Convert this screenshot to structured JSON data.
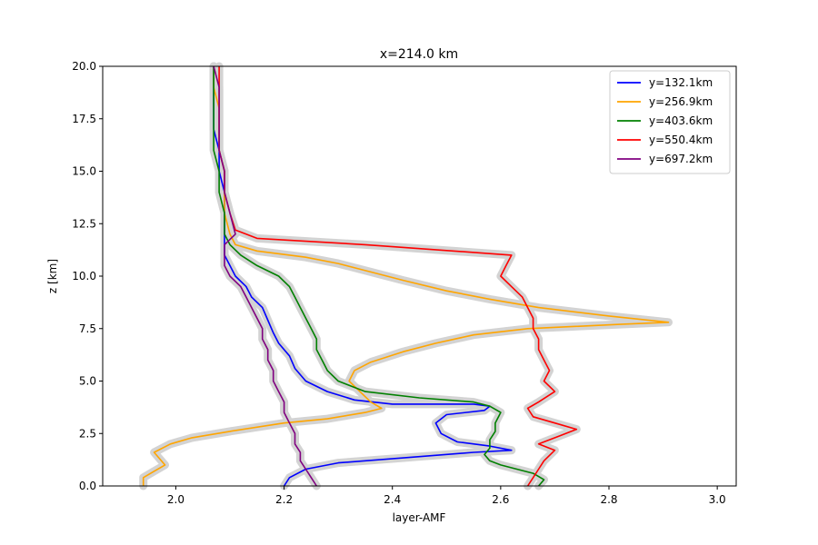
{
  "chart_data": {
    "type": "line",
    "title": "x=214.0 km",
    "xlabel": "layer-AMF",
    "ylabel": "z [km]",
    "xlim": [
      1.865,
      3.035
    ],
    "ylim": [
      0,
      20
    ],
    "xticks": [
      2.0,
      2.2,
      2.4,
      2.6,
      2.8,
      3.0
    ],
    "xtick_labels": [
      "2.0",
      "2.2",
      "2.4",
      "2.6",
      "2.8",
      "3.0"
    ],
    "yticks": [
      0,
      2.5,
      5,
      7.5,
      10,
      12.5,
      15,
      17.5,
      20
    ],
    "ytick_labels": [
      "0.0",
      "2.5",
      "5.0",
      "7.5",
      "10.0",
      "12.5",
      "15.0",
      "17.5",
      "20.0"
    ],
    "grid": false,
    "legend_position": "top-right",
    "band_color": "#d3d3d3",
    "series": [
      {
        "name": "y=132.1km",
        "color": "#0000ff",
        "points": [
          [
            2.2,
            0.0
          ],
          [
            2.21,
            0.4
          ],
          [
            2.24,
            0.8
          ],
          [
            2.3,
            1.1
          ],
          [
            2.45,
            1.4
          ],
          [
            2.55,
            1.6
          ],
          [
            2.62,
            1.7
          ],
          [
            2.58,
            1.9
          ],
          [
            2.52,
            2.1
          ],
          [
            2.49,
            2.5
          ],
          [
            2.48,
            3.0
          ],
          [
            2.5,
            3.4
          ],
          [
            2.57,
            3.6
          ],
          [
            2.58,
            3.8
          ],
          [
            2.55,
            3.9
          ],
          [
            2.4,
            3.9
          ],
          [
            2.33,
            4.1
          ],
          [
            2.28,
            4.5
          ],
          [
            2.24,
            5.0
          ],
          [
            2.22,
            5.6
          ],
          [
            2.21,
            6.2
          ],
          [
            2.19,
            6.8
          ],
          [
            2.18,
            7.3
          ],
          [
            2.17,
            7.9
          ],
          [
            2.16,
            8.5
          ],
          [
            2.14,
            9.0
          ],
          [
            2.13,
            9.5
          ],
          [
            2.11,
            10.0
          ],
          [
            2.1,
            10.5
          ],
          [
            2.09,
            11.0
          ],
          [
            2.09,
            12.0
          ],
          [
            2.09,
            13.0
          ],
          [
            2.09,
            14.0
          ],
          [
            2.08,
            15.0
          ],
          [
            2.08,
            16.0
          ],
          [
            2.07,
            17.0
          ],
          [
            2.07,
            18.0
          ],
          [
            2.07,
            19.0
          ],
          [
            2.07,
            20.0
          ]
        ]
      },
      {
        "name": "y=256.9km",
        "color": "#ffa500",
        "points": [
          [
            1.94,
            0.0
          ],
          [
            1.94,
            0.4
          ],
          [
            1.96,
            0.7
          ],
          [
            1.98,
            1.0
          ],
          [
            1.97,
            1.3
          ],
          [
            1.96,
            1.6
          ],
          [
            1.99,
            2.0
          ],
          [
            2.03,
            2.3
          ],
          [
            2.1,
            2.6
          ],
          [
            2.2,
            3.0
          ],
          [
            2.28,
            3.2
          ],
          [
            2.35,
            3.5
          ],
          [
            2.38,
            3.7
          ],
          [
            2.36,
            4.0
          ],
          [
            2.34,
            4.5
          ],
          [
            2.32,
            5.0
          ],
          [
            2.33,
            5.5
          ],
          [
            2.36,
            5.9
          ],
          [
            2.42,
            6.4
          ],
          [
            2.48,
            6.8
          ],
          [
            2.55,
            7.2
          ],
          [
            2.65,
            7.5
          ],
          [
            2.82,
            7.7
          ],
          [
            2.91,
            7.8
          ],
          [
            2.8,
            8.1
          ],
          [
            2.67,
            8.5
          ],
          [
            2.58,
            8.9
          ],
          [
            2.5,
            9.3
          ],
          [
            2.42,
            9.8
          ],
          [
            2.36,
            10.2
          ],
          [
            2.3,
            10.6
          ],
          [
            2.24,
            10.9
          ],
          [
            2.15,
            11.2
          ],
          [
            2.11,
            11.5
          ],
          [
            2.1,
            12.0
          ],
          [
            2.09,
            13.0
          ],
          [
            2.09,
            14.0
          ],
          [
            2.09,
            15.0
          ],
          [
            2.08,
            16.0
          ],
          [
            2.08,
            17.0
          ],
          [
            2.08,
            18.0
          ],
          [
            2.07,
            19.0
          ],
          [
            2.07,
            20.0
          ]
        ]
      },
      {
        "name": "y=403.6km",
        "color": "#008000",
        "points": [
          [
            2.67,
            0.0
          ],
          [
            2.68,
            0.3
          ],
          [
            2.66,
            0.6
          ],
          [
            2.63,
            0.8
          ],
          [
            2.6,
            1.0
          ],
          [
            2.58,
            1.2
          ],
          [
            2.57,
            1.5
          ],
          [
            2.58,
            1.8
          ],
          [
            2.58,
            2.2
          ],
          [
            2.59,
            2.6
          ],
          [
            2.59,
            3.0
          ],
          [
            2.6,
            3.5
          ],
          [
            2.58,
            3.8
          ],
          [
            2.55,
            4.0
          ],
          [
            2.45,
            4.2
          ],
          [
            2.35,
            4.5
          ],
          [
            2.3,
            5.0
          ],
          [
            2.28,
            5.5
          ],
          [
            2.27,
            6.0
          ],
          [
            2.26,
            6.5
          ],
          [
            2.26,
            7.0
          ],
          [
            2.25,
            7.5
          ],
          [
            2.24,
            8.0
          ],
          [
            2.23,
            8.5
          ],
          [
            2.22,
            9.0
          ],
          [
            2.21,
            9.5
          ],
          [
            2.19,
            10.0
          ],
          [
            2.15,
            10.5
          ],
          [
            2.12,
            11.0
          ],
          [
            2.1,
            11.5
          ],
          [
            2.09,
            12.0
          ],
          [
            2.09,
            13.0
          ],
          [
            2.08,
            14.0
          ],
          [
            2.08,
            15.0
          ],
          [
            2.07,
            16.0
          ],
          [
            2.07,
            17.0
          ],
          [
            2.07,
            18.0
          ],
          [
            2.07,
            19.0
          ],
          [
            2.07,
            20.0
          ]
        ]
      },
      {
        "name": "y=550.4km",
        "color": "#ff0000",
        "points": [
          [
            2.65,
            0.0
          ],
          [
            2.66,
            0.4
          ],
          [
            2.67,
            0.8
          ],
          [
            2.68,
            1.2
          ],
          [
            2.7,
            1.7
          ],
          [
            2.67,
            2.0
          ],
          [
            2.71,
            2.4
          ],
          [
            2.74,
            2.7
          ],
          [
            2.7,
            3.0
          ],
          [
            2.66,
            3.3
          ],
          [
            2.65,
            3.7
          ],
          [
            2.67,
            4.0
          ],
          [
            2.7,
            4.5
          ],
          [
            2.68,
            5.0
          ],
          [
            2.69,
            5.5
          ],
          [
            2.68,
            6.0
          ],
          [
            2.67,
            6.5
          ],
          [
            2.67,
            7.0
          ],
          [
            2.66,
            7.5
          ],
          [
            2.66,
            8.0
          ],
          [
            2.65,
            8.5
          ],
          [
            2.64,
            9.0
          ],
          [
            2.62,
            9.5
          ],
          [
            2.6,
            10.0
          ],
          [
            2.61,
            10.5
          ],
          [
            2.62,
            11.0
          ],
          [
            2.35,
            11.5
          ],
          [
            2.15,
            11.8
          ],
          [
            2.11,
            12.2
          ],
          [
            2.1,
            13.0
          ],
          [
            2.09,
            14.0
          ],
          [
            2.09,
            15.0
          ],
          [
            2.08,
            16.0
          ],
          [
            2.08,
            17.0
          ],
          [
            2.08,
            18.0
          ],
          [
            2.08,
            19.0
          ],
          [
            2.08,
            20.0
          ]
        ]
      },
      {
        "name": "y=697.2km",
        "color": "#800080",
        "points": [
          [
            2.26,
            0.0
          ],
          [
            2.25,
            0.4
          ],
          [
            2.24,
            0.8
          ],
          [
            2.23,
            1.2
          ],
          [
            2.23,
            1.6
          ],
          [
            2.22,
            2.0
          ],
          [
            2.22,
            2.5
          ],
          [
            2.21,
            3.0
          ],
          [
            2.2,
            3.5
          ],
          [
            2.2,
            4.0
          ],
          [
            2.19,
            4.5
          ],
          [
            2.18,
            5.0
          ],
          [
            2.18,
            5.5
          ],
          [
            2.17,
            6.0
          ],
          [
            2.17,
            6.5
          ],
          [
            2.16,
            7.0
          ],
          [
            2.16,
            7.5
          ],
          [
            2.15,
            8.0
          ],
          [
            2.14,
            8.5
          ],
          [
            2.13,
            9.0
          ],
          [
            2.12,
            9.5
          ],
          [
            2.1,
            10.0
          ],
          [
            2.09,
            10.5
          ],
          [
            2.09,
            11.0
          ],
          [
            2.09,
            11.5
          ],
          [
            2.11,
            12.0
          ],
          [
            2.1,
            13.0
          ],
          [
            2.09,
            14.0
          ],
          [
            2.09,
            15.0
          ],
          [
            2.08,
            16.0
          ],
          [
            2.08,
            17.0
          ],
          [
            2.08,
            18.0
          ],
          [
            2.08,
            19.0
          ],
          [
            2.07,
            20.0
          ]
        ]
      }
    ]
  }
}
